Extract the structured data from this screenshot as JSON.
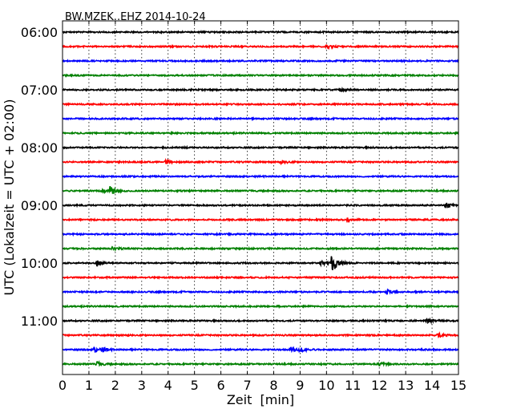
{
  "chart_data": {
    "type": "line",
    "title": "BW.MZEK..EHZ 2014-10-24",
    "xlabel": "Zeit  [min]",
    "ylabel": "UTC (Lokalzeit = UTC + 02:00)",
    "xlim": [
      0,
      15
    ],
    "x_ticks": [
      "0",
      "1",
      "2",
      "3",
      "4",
      "5",
      "6",
      "7",
      "8",
      "9",
      "10",
      "11",
      "12",
      "13",
      "14",
      "15"
    ],
    "y_tick_labels": [
      "06:00",
      "07:00",
      "08:00",
      "09:00",
      "10:00",
      "11:00"
    ],
    "grid": "vertical dotted",
    "trace_interval_min": 15,
    "trace_colors": [
      "#000000",
      "#ff0000",
      "#0000ff",
      "#008000"
    ],
    "traces": [
      {
        "start": "06:00",
        "events": []
      },
      {
        "start": "06:15",
        "events": [
          {
            "min": 10.0,
            "amp": 1.5
          }
        ]
      },
      {
        "start": "06:30",
        "events": []
      },
      {
        "start": "06:45",
        "events": []
      },
      {
        "start": "07:00",
        "events": [
          {
            "min": 10.5,
            "amp": 1.5
          }
        ]
      },
      {
        "start": "07:15",
        "events": []
      },
      {
        "start": "07:30",
        "events": []
      },
      {
        "start": "07:45",
        "events": []
      },
      {
        "start": "08:00",
        "events": []
      },
      {
        "start": "08:15",
        "events": [
          {
            "min": 3.9,
            "amp": 1.3
          },
          {
            "min": 8.3,
            "amp": 1.2
          }
        ]
      },
      {
        "start": "08:30",
        "events": []
      },
      {
        "start": "08:45",
        "events": [
          {
            "min": 1.8,
            "amp": 3.5
          },
          {
            "min": 1.5,
            "amp": 1.5
          }
        ]
      },
      {
        "start": "09:00",
        "events": [
          {
            "min": 14.5,
            "amp": 2
          }
        ]
      },
      {
        "start": "09:15",
        "events": [
          {
            "min": 10.8,
            "amp": 1.2
          }
        ]
      },
      {
        "start": "09:30",
        "events": []
      },
      {
        "start": "09:45",
        "events": [
          {
            "min": 1.9,
            "amp": 1.3
          }
        ]
      },
      {
        "start": "10:00",
        "events": [
          {
            "min": 1.3,
            "amp": 2
          },
          {
            "min": 9.8,
            "amp": 1.5
          },
          {
            "min": 10.2,
            "amp": 7.5
          }
        ]
      },
      {
        "start": "10:15",
        "events": []
      },
      {
        "start": "10:30",
        "events": [
          {
            "min": 12.3,
            "amp": 1.5
          }
        ]
      },
      {
        "start": "10:45",
        "events": []
      },
      {
        "start": "11:00",
        "events": [
          {
            "min": 13.8,
            "amp": 1.6
          }
        ]
      },
      {
        "start": "11:15",
        "events": [
          {
            "min": 14.2,
            "amp": 1.8
          }
        ]
      },
      {
        "start": "11:30",
        "events": [
          {
            "min": 1.2,
            "amp": 2
          },
          {
            "min": 1.5,
            "amp": 1.5
          },
          {
            "min": 8.6,
            "amp": 2
          },
          {
            "min": 9.0,
            "amp": 2.2
          }
        ]
      },
      {
        "start": "11:45",
        "events": [
          {
            "min": 1.3,
            "amp": 1.5
          },
          {
            "min": 12.0,
            "amp": 1.5
          }
        ]
      }
    ]
  }
}
